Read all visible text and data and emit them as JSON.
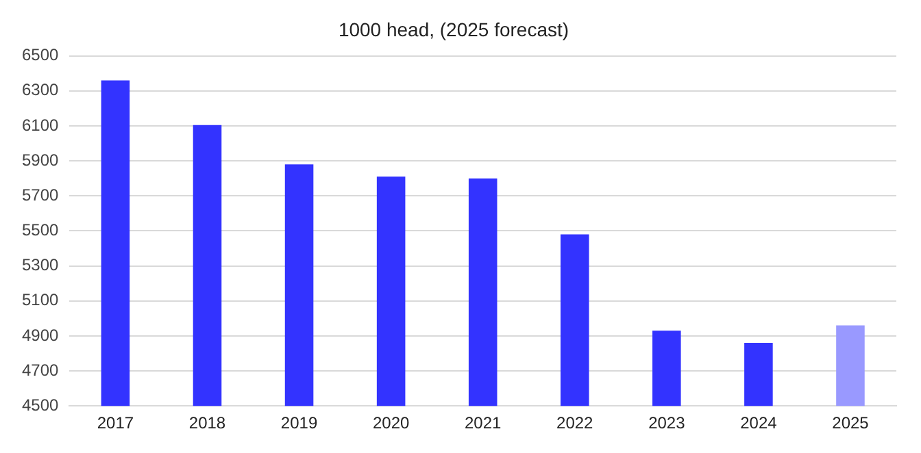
{
  "chart_data": {
    "type": "bar",
    "title": "1000 head, (2025 forecast)",
    "categories": [
      "2017",
      "2018",
      "2019",
      "2020",
      "2021",
      "2022",
      "2023",
      "2024",
      "2025"
    ],
    "values": [
      6360,
      6105,
      5880,
      5810,
      5800,
      5480,
      4930,
      4860,
      4960
    ],
    "colors": [
      "#3333ff",
      "#3333ff",
      "#3333ff",
      "#3333ff",
      "#3333ff",
      "#3333ff",
      "#3333ff",
      "#3333ff",
      "#9999ff"
    ],
    "ylim": [
      4500,
      6500
    ],
    "yticks": [
      4500,
      4700,
      4900,
      5100,
      5300,
      5500,
      5700,
      5900,
      6100,
      6300,
      6500
    ],
    "grid": "y",
    "legend": false
  }
}
